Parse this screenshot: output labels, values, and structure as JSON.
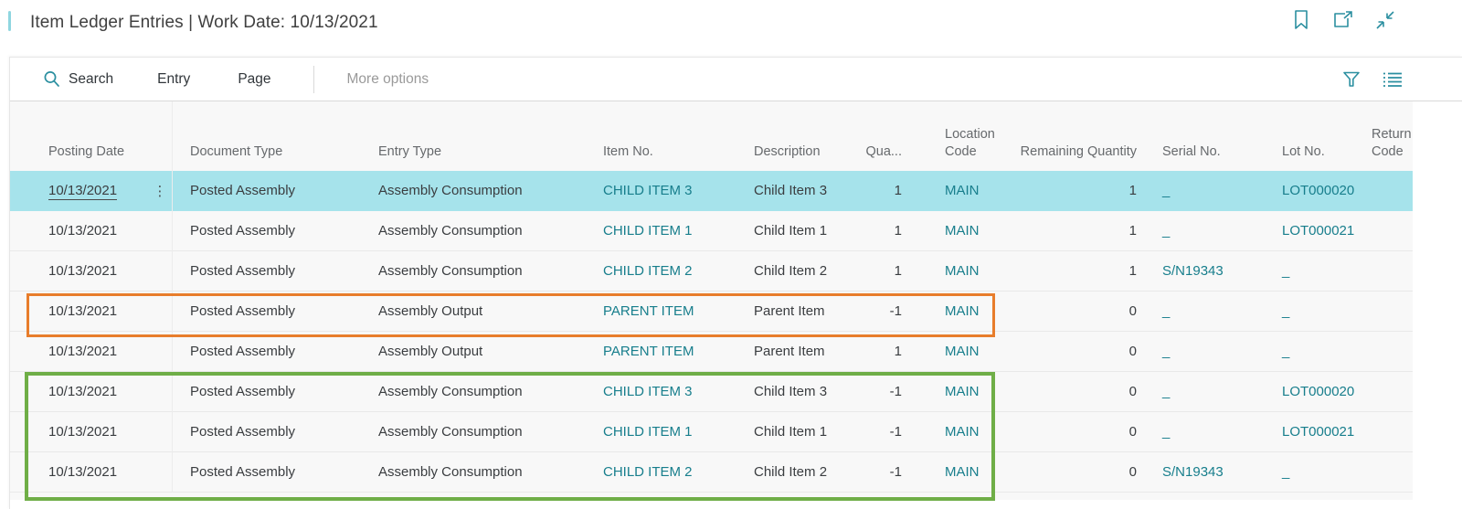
{
  "colors": {
    "teal-icon": "#2b8fa0",
    "teal-link": "#177e8c",
    "highlight-row": "#a6e3eb",
    "orange-box": "#e87d2b",
    "green-box": "#6fae47",
    "title-text": "#404040",
    "toolbar-text": "#31363a",
    "muted-text": "#9a9a9a",
    "header-text": "#66696c",
    "cell-text": "#3a3d40",
    "table-bg": "#f8f8f8",
    "row-separator": "#e9e9e9",
    "panel-border": "#e6e6e6",
    "toolbar-divider": "#d9d9d9"
  },
  "title_bar": {
    "title": "Item Ledger Entries | Work Date: 10/13/2021",
    "icons": [
      "bookmark-icon",
      "open-in-new-window-icon",
      "collapse-window-icon"
    ]
  },
  "toolbar": {
    "search_label": "Search",
    "entry_label": "Entry",
    "page_label": "Page",
    "more_options_label": "More options",
    "right_icons": [
      "filter-icon",
      "choose-columns-icon"
    ]
  },
  "table": {
    "columns": [
      {
        "id": "posting_date",
        "label": "Posting Date",
        "align": "left"
      },
      {
        "id": "document_type",
        "label": "Document Type",
        "align": "left"
      },
      {
        "id": "entry_type",
        "label": "Entry Type",
        "align": "left"
      },
      {
        "id": "item_no",
        "label": "Item No.",
        "align": "left"
      },
      {
        "id": "description",
        "label": "Description",
        "align": "left"
      },
      {
        "id": "quantity",
        "label": "Qua...",
        "align": "right"
      },
      {
        "id": "location_code",
        "label": "Location Code",
        "align": "left"
      },
      {
        "id": "remaining_quantity",
        "label": "Remaining Quantity",
        "align": "right"
      },
      {
        "id": "serial_no",
        "label": "Serial No.",
        "align": "left"
      },
      {
        "id": "lot_no",
        "label": "Lot No.",
        "align": "left"
      },
      {
        "id": "return_code",
        "label": "Return Code",
        "align": "left"
      }
    ],
    "rows": [
      {
        "posting_date": "10/13/2021",
        "document_type": "Posted Assembly",
        "entry_type": "Assembly Consumption",
        "item_no": "CHILD ITEM 3",
        "description": "Child Item 3",
        "quantity": "1",
        "location_code": "MAIN",
        "remaining_quantity": "1",
        "serial_no": "_",
        "lot_no": "LOT000020",
        "return_code": "",
        "highlighted": true,
        "selected_cell": "posting_date",
        "context_menu": true
      },
      {
        "posting_date": "10/13/2021",
        "document_type": "Posted Assembly",
        "entry_type": "Assembly Consumption",
        "item_no": "CHILD ITEM 1",
        "description": "Child Item 1",
        "quantity": "1",
        "location_code": "MAIN",
        "remaining_quantity": "1",
        "serial_no": "_",
        "lot_no": "LOT000021",
        "return_code": ""
      },
      {
        "posting_date": "10/13/2021",
        "document_type": "Posted Assembly",
        "entry_type": "Assembly Consumption",
        "item_no": "CHILD ITEM 2",
        "description": "Child Item 2",
        "quantity": "1",
        "location_code": "MAIN",
        "remaining_quantity": "1",
        "serial_no": "S/N19343",
        "lot_no": "_",
        "return_code": ""
      },
      {
        "posting_date": "10/13/2021",
        "document_type": "Posted Assembly",
        "entry_type": "Assembly Output",
        "item_no": "PARENT ITEM",
        "description": "Parent Item",
        "quantity": "-1",
        "location_code": "MAIN",
        "remaining_quantity": "0",
        "serial_no": "_",
        "lot_no": "_",
        "return_code": ""
      },
      {
        "posting_date": "10/13/2021",
        "document_type": "Posted Assembly",
        "entry_type": "Assembly Output",
        "item_no": "PARENT ITEM",
        "description": "Parent Item",
        "quantity": "1",
        "location_code": "MAIN",
        "remaining_quantity": "0",
        "serial_no": "_",
        "lot_no": "_",
        "return_code": ""
      },
      {
        "posting_date": "10/13/2021",
        "document_type": "Posted Assembly",
        "entry_type": "Assembly Consumption",
        "item_no": "CHILD ITEM 3",
        "description": "Child Item 3",
        "quantity": "-1",
        "location_code": "MAIN",
        "remaining_quantity": "0",
        "serial_no": "_",
        "lot_no": "LOT000020",
        "return_code": ""
      },
      {
        "posting_date": "10/13/2021",
        "document_type": "Posted Assembly",
        "entry_type": "Assembly Consumption",
        "item_no": "CHILD ITEM 1",
        "description": "Child Item 1",
        "quantity": "-1",
        "location_code": "MAIN",
        "remaining_quantity": "0",
        "serial_no": "_",
        "lot_no": "LOT000021",
        "return_code": ""
      },
      {
        "posting_date": "10/13/2021",
        "document_type": "Posted Assembly",
        "entry_type": "Assembly Consumption",
        "item_no": "CHILD ITEM 2",
        "description": "Child Item 2",
        "quantity": "-1",
        "location_code": "MAIN",
        "remaining_quantity": "0",
        "serial_no": "S/N19343",
        "lot_no": "_",
        "return_code": ""
      }
    ],
    "annotations": [
      {
        "type": "orange-box",
        "color": "#e87d2b",
        "around_rows": [
          4
        ]
      },
      {
        "type": "green-box",
        "color": "#6fae47",
        "around_rows": [
          6,
          7,
          8
        ]
      }
    ]
  }
}
